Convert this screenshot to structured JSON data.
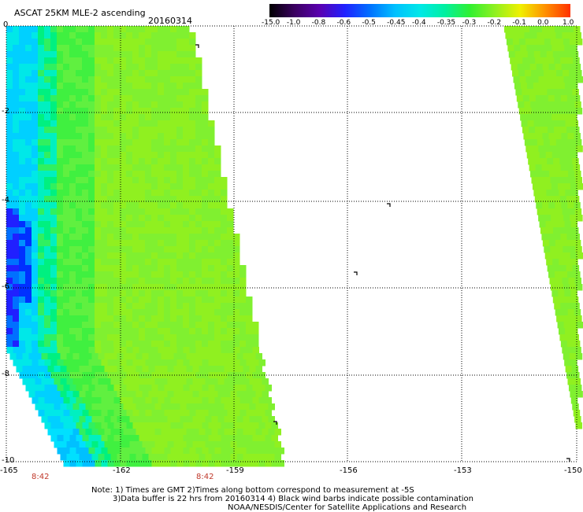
{
  "header": {
    "title": "ASCAT 25KM MLE-2 ascending",
    "date": "20160314"
  },
  "colorbar": {
    "labels": [
      "-15.0",
      "-1.0",
      "-0.8",
      "-0.6",
      "-0.5",
      "-0.45",
      "-0.4",
      "-0.35",
      "-0.3",
      "-0.2",
      "-0.1",
      "0.0",
      "1.0"
    ],
    "colors": [
      "#000000",
      "#3a0060",
      "#5a00b0",
      "#2020ff",
      "#0070ff",
      "#00c0ff",
      "#00e8e8",
      "#00f0a0",
      "#30f030",
      "#90f020",
      "#f0f000",
      "#ff9000",
      "#ff3000"
    ]
  },
  "axes": {
    "y_labels": [
      "0",
      "-2",
      "-4",
      "-6",
      "-8",
      "-10"
    ],
    "x_labels": [
      "-165",
      "-162",
      "-159",
      "-156",
      "-153",
      "-150"
    ]
  },
  "time_labels": [
    "8:42",
    "8:42"
  ],
  "notes": {
    "line1": "Note: 1) Times are GMT 2)Times along bottom correspond to measurement at -5S",
    "line2": "3)Data buffer is 22 hrs from 20160314 4) Black wind barbs indicate possible contamination",
    "line3": "NOAA/NESDIS/Center for Satellite Applications and Research"
  }
}
